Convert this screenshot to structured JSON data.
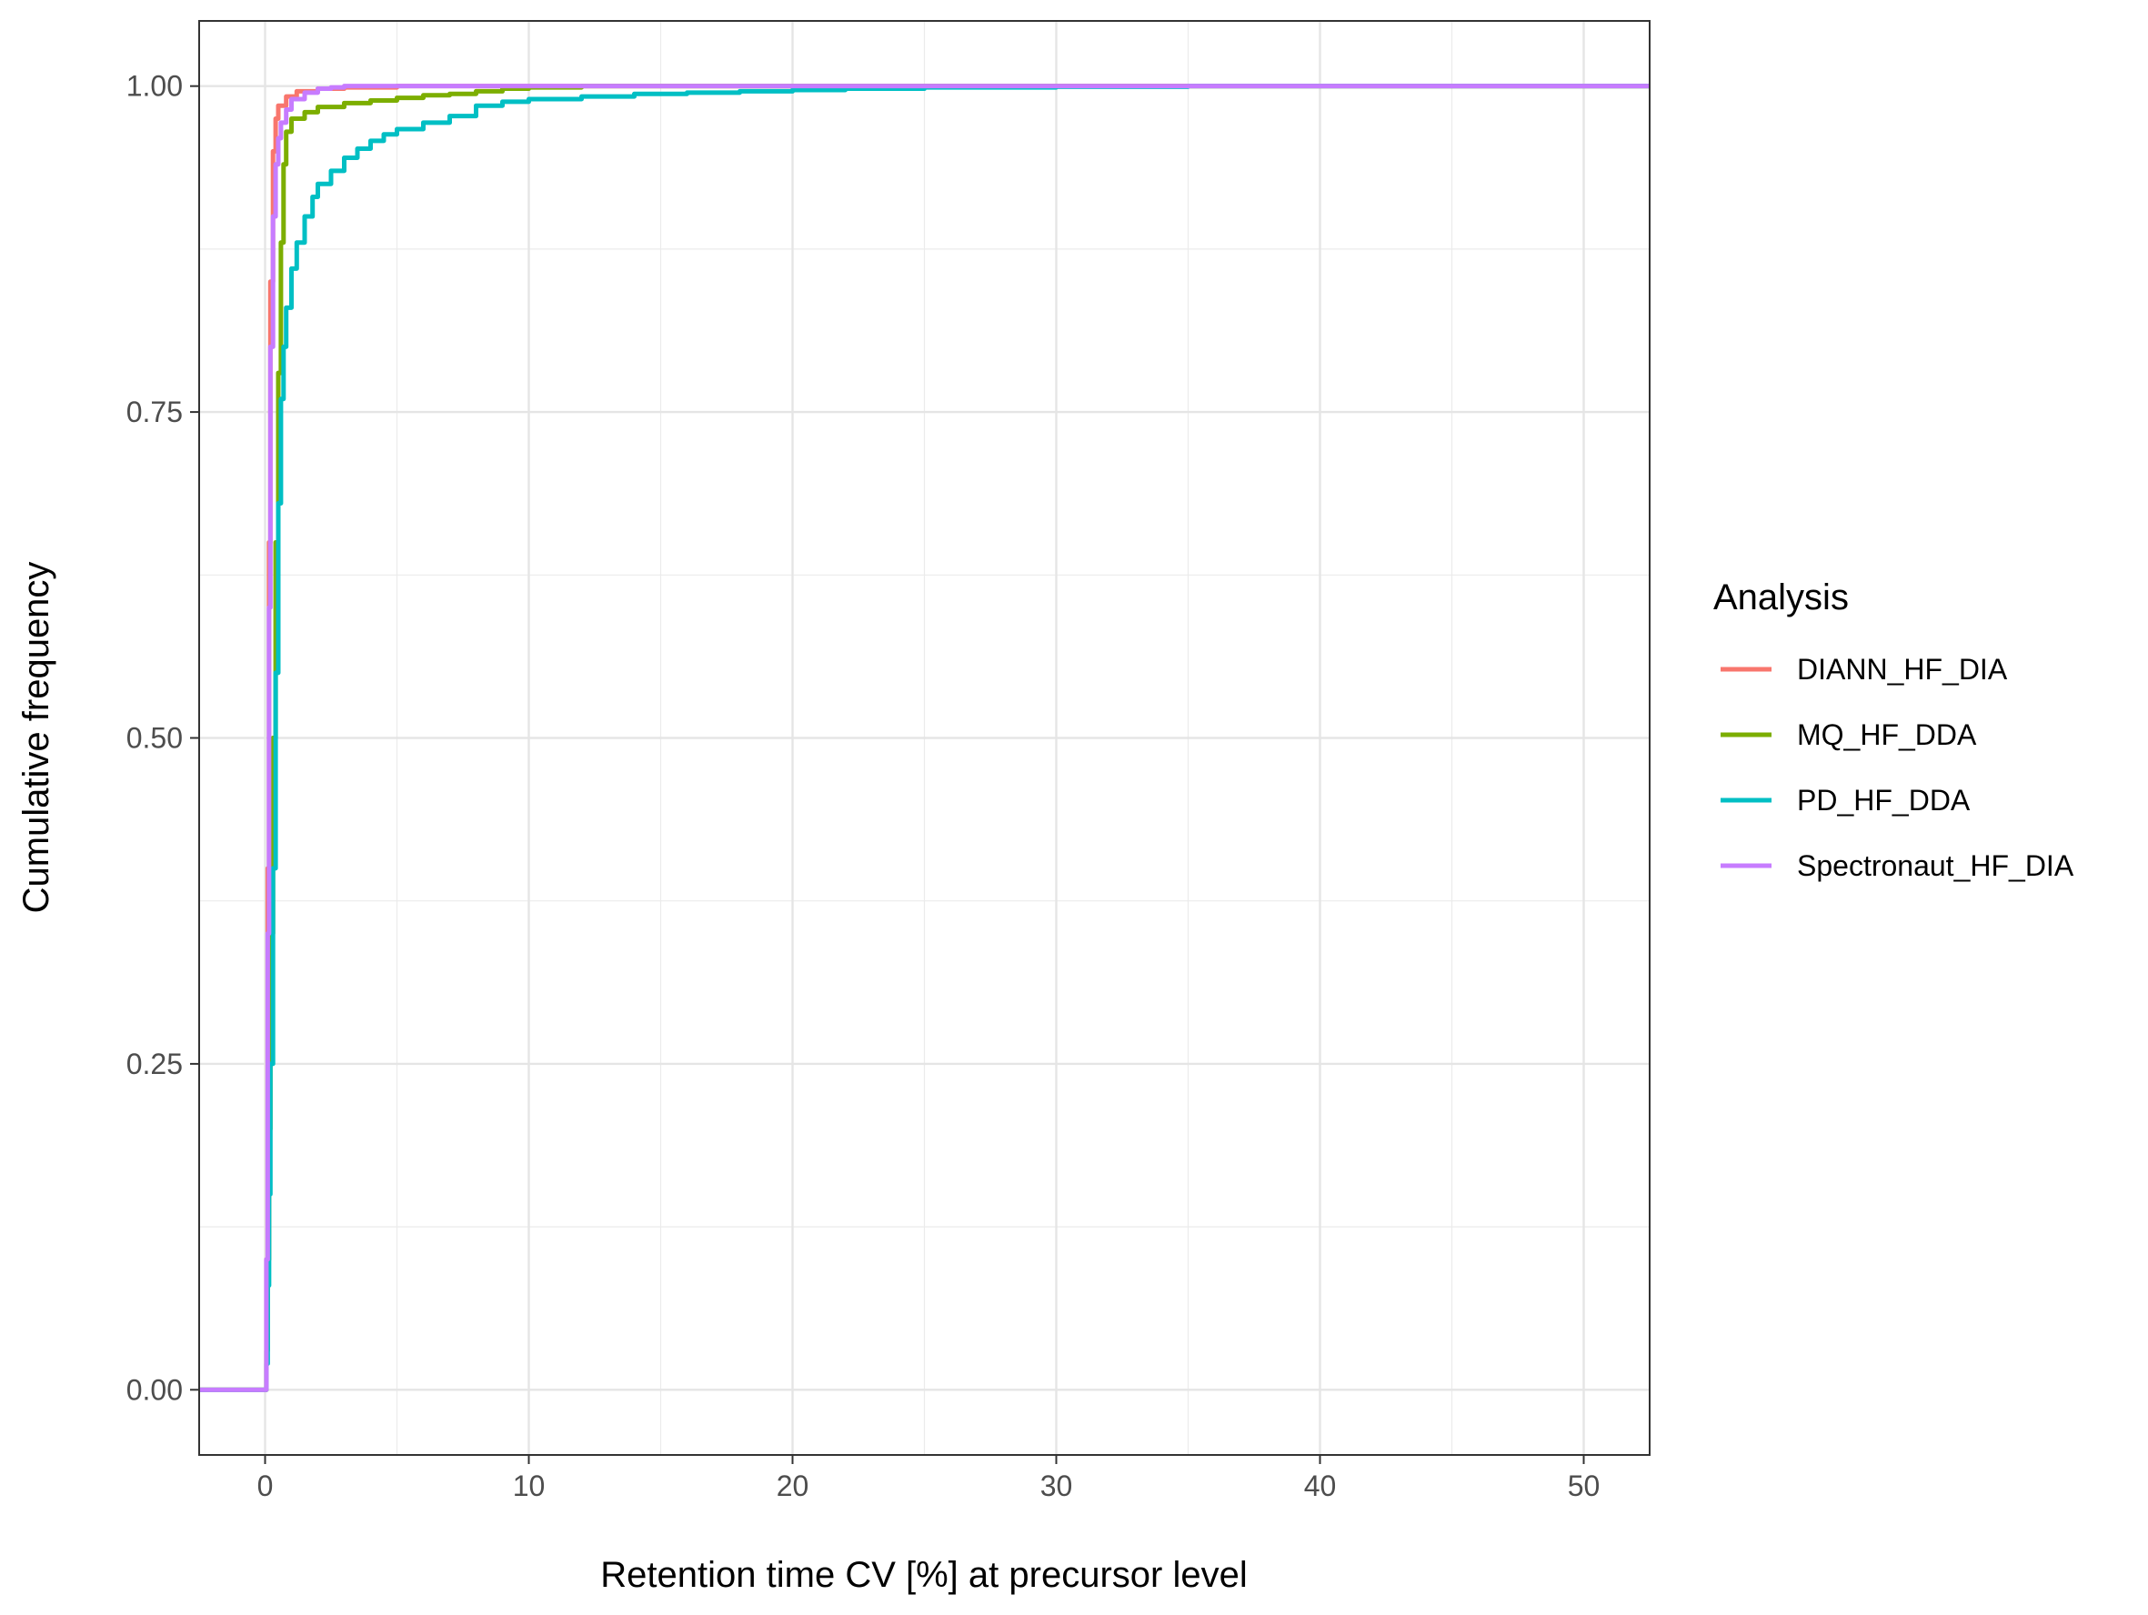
{
  "chart_data": {
    "type": "line",
    "step": true,
    "title": "",
    "xlabel": "Retention time CV [%] at precursor level",
    "ylabel": "Cumulative frequency",
    "xlim": [
      -2.5,
      52.5
    ],
    "ylim": [
      -0.05,
      1.05
    ],
    "x_ticks": [
      0,
      10,
      20,
      30,
      40,
      50
    ],
    "x_tick_labels": [
      "0",
      "10",
      "20",
      "30",
      "40",
      "50"
    ],
    "y_ticks": [
      0,
      0.25,
      0.5,
      0.75,
      1.0
    ],
    "y_tick_labels": [
      "0.00",
      "0.25",
      "0.50",
      "0.75",
      "1.00"
    ],
    "x_minor_ticks": [
      5,
      15,
      25,
      35,
      45
    ],
    "y_minor_ticks": [
      0.125,
      0.375,
      0.625,
      0.875
    ],
    "grid": true,
    "legend_title": "Analysis",
    "legend_position": "right",
    "series": [
      {
        "name": "DIANN_HF_DIA",
        "color": "#F8766D",
        "points": [
          [
            -2.5,
            0
          ],
          [
            0.03,
            0
          ],
          [
            0.05,
            0.1
          ],
          [
            0.1,
            0.4
          ],
          [
            0.15,
            0.65
          ],
          [
            0.2,
            0.85
          ],
          [
            0.3,
            0.95
          ],
          [
            0.4,
            0.975
          ],
          [
            0.5,
            0.985
          ],
          [
            0.8,
            0.992
          ],
          [
            1.2,
            0.996
          ],
          [
            2,
            0.998
          ],
          [
            3,
            0.999
          ],
          [
            5,
            1.0
          ],
          [
            52.5,
            1.0
          ]
        ]
      },
      {
        "name": "MQ_HF_DDA",
        "color": "#7CAE00",
        "points": [
          [
            -2.5,
            0
          ],
          [
            0.03,
            0
          ],
          [
            0.05,
            0.03
          ],
          [
            0.1,
            0.1
          ],
          [
            0.15,
            0.2
          ],
          [
            0.2,
            0.35
          ],
          [
            0.3,
            0.5
          ],
          [
            0.4,
            0.65
          ],
          [
            0.5,
            0.78
          ],
          [
            0.6,
            0.88
          ],
          [
            0.7,
            0.94
          ],
          [
            0.8,
            0.965
          ],
          [
            1,
            0.975
          ],
          [
            1.5,
            0.98
          ],
          [
            2,
            0.984
          ],
          [
            3,
            0.987
          ],
          [
            4,
            0.989
          ],
          [
            5,
            0.991
          ],
          [
            6,
            0.993
          ],
          [
            7,
            0.994
          ],
          [
            8,
            0.996
          ],
          [
            9,
            0.998
          ],
          [
            10,
            0.999
          ],
          [
            12,
            1.0
          ],
          [
            52.5,
            1.0
          ]
        ]
      },
      {
        "name": "PD_HF_DDA",
        "color": "#00BFC4",
        "points": [
          [
            -2.5,
            0
          ],
          [
            0.03,
            0
          ],
          [
            0.05,
            0.02
          ],
          [
            0.1,
            0.08
          ],
          [
            0.15,
            0.15
          ],
          [
            0.2,
            0.25
          ],
          [
            0.3,
            0.4
          ],
          [
            0.4,
            0.55
          ],
          [
            0.5,
            0.68
          ],
          [
            0.6,
            0.76
          ],
          [
            0.7,
            0.8
          ],
          [
            0.8,
            0.83
          ],
          [
            1,
            0.86
          ],
          [
            1.2,
            0.88
          ],
          [
            1.5,
            0.9
          ],
          [
            1.8,
            0.915
          ],
          [
            2,
            0.925
          ],
          [
            2.5,
            0.935
          ],
          [
            3,
            0.945
          ],
          [
            3.5,
            0.952
          ],
          [
            4,
            0.958
          ],
          [
            4.5,
            0.963
          ],
          [
            5,
            0.967
          ],
          [
            6,
            0.972
          ],
          [
            7,
            0.977
          ],
          [
            8,
            0.985
          ],
          [
            9,
            0.988
          ],
          [
            10,
            0.99
          ],
          [
            12,
            0.992
          ],
          [
            14,
            0.994
          ],
          [
            16,
            0.995
          ],
          [
            18,
            0.996
          ],
          [
            20,
            0.997
          ],
          [
            22,
            0.998
          ],
          [
            25,
            0.999
          ],
          [
            30,
            0.9995
          ],
          [
            35,
            1.0
          ],
          [
            52.5,
            1.0
          ]
        ]
      },
      {
        "name": "Spectronaut_HF_DIA",
        "color": "#C77CFF",
        "points": [
          [
            -2.5,
            0
          ],
          [
            0.03,
            0
          ],
          [
            0.05,
            0.1
          ],
          [
            0.1,
            0.35
          ],
          [
            0.15,
            0.6
          ],
          [
            0.2,
            0.8
          ],
          [
            0.3,
            0.9
          ],
          [
            0.4,
            0.94
          ],
          [
            0.5,
            0.96
          ],
          [
            0.6,
            0.972
          ],
          [
            0.8,
            0.982
          ],
          [
            1,
            0.99
          ],
          [
            1.5,
            0.995
          ],
          [
            2,
            0.998
          ],
          [
            2.5,
            0.999
          ],
          [
            3,
            1.0
          ],
          [
            52.5,
            1.0
          ]
        ]
      }
    ]
  }
}
